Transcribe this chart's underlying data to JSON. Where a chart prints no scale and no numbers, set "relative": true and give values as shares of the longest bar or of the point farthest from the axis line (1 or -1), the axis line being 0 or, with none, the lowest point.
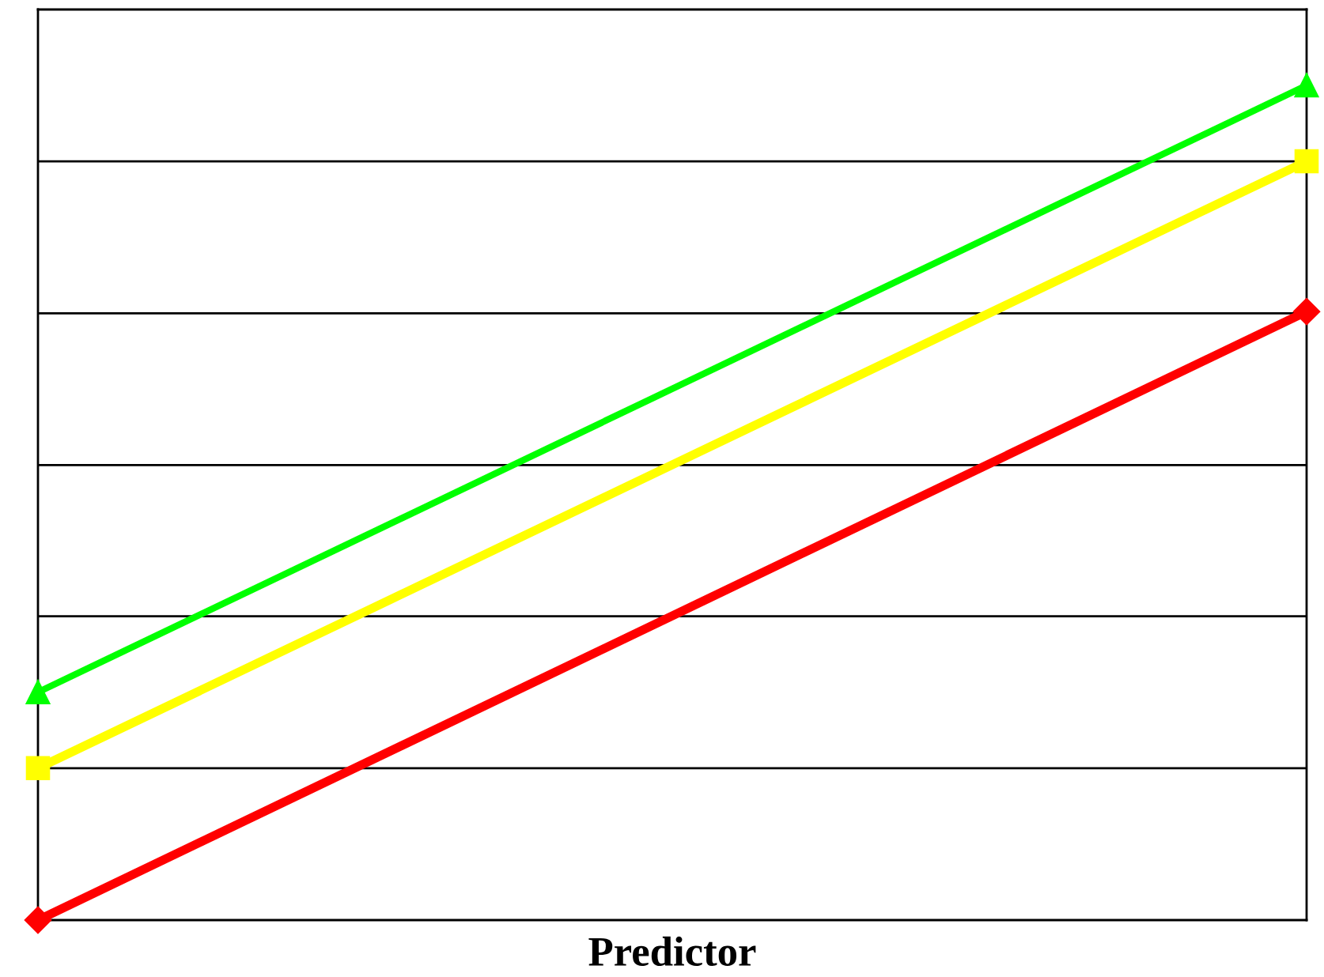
{
  "chart_data": {
    "type": "line",
    "xlabel": "Predictor",
    "categories": [
      null,
      null
    ],
    "relative": true,
    "ref_lines": [
      {
        "axis": "y",
        "value": 0.182,
        "color": "#000000"
      },
      {
        "axis": "y",
        "value": 0.364,
        "color": "#000000"
      },
      {
        "axis": "y",
        "value": 0.545,
        "color": "#000000"
      },
      {
        "axis": "y",
        "value": 0.727,
        "color": "#000000"
      },
      {
        "axis": "y",
        "value": 0.909,
        "color": "#000000"
      }
    ],
    "series": [
      {
        "color": "#00ff00",
        "marker": "triangle",
        "values": [
          0.273,
          1
        ]
      },
      {
        "color": "#ffff00",
        "marker": "square",
        "values": [
          0.182,
          0.909
        ]
      },
      {
        "color": "#ff0000",
        "marker": "diamond",
        "values": [
          0,
          0.729
        ]
      }
    ]
  }
}
